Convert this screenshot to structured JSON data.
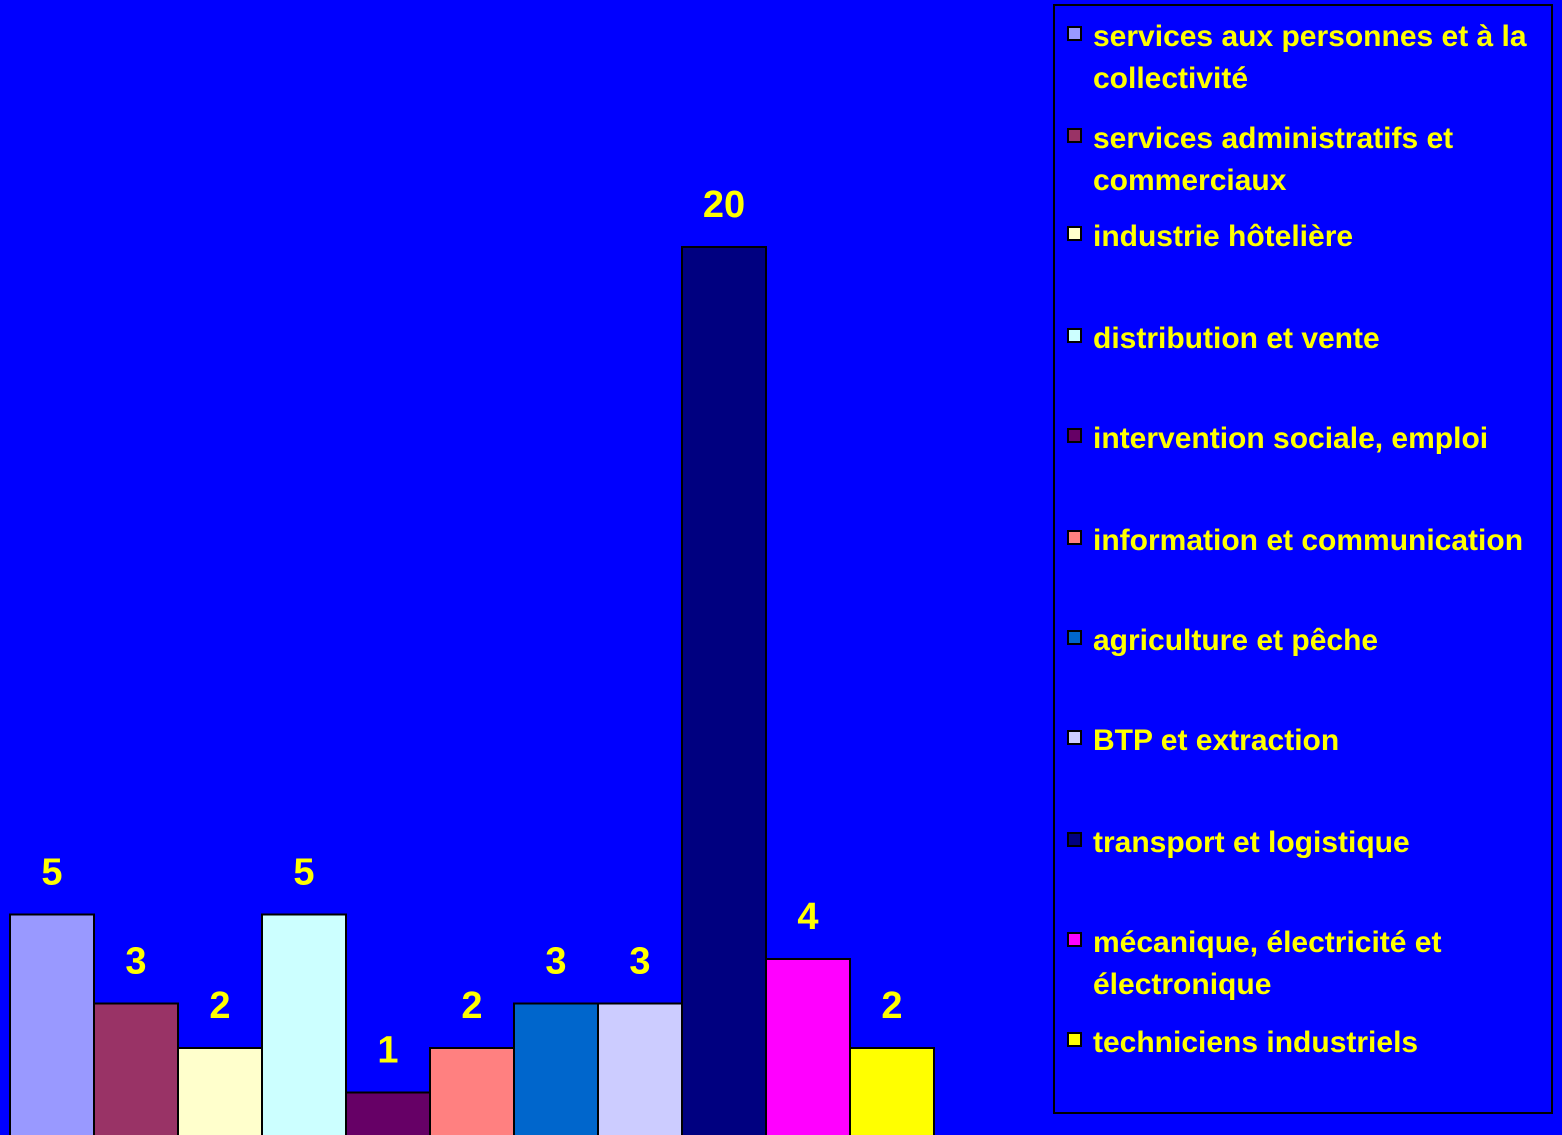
{
  "chart_data": {
    "type": "bar",
    "categories": [
      "services aux personnes et à la collectivité",
      "services administratifs et commerciaux",
      "industrie hôtelière",
      "distribution et vente",
      "intervention sociale, emploi",
      "information et communication",
      "agriculture et pêche",
      "BTP et extraction",
      "transport et logistique",
      "mécanique, électricité et électronique",
      "techniciens industriels"
    ],
    "values": [
      5,
      3,
      2,
      5,
      1,
      2,
      3,
      3,
      20,
      4,
      2
    ],
    "data_labels": [
      "5",
      "3",
      "2",
      "5",
      "1",
      "2",
      "3",
      "3",
      "20",
      "4",
      "2"
    ],
    "colors": [
      "#9999FF",
      "#993366",
      "#FFFFCC",
      "#CCFFFF",
      "#660066",
      "#FF8080",
      "#0066CC",
      "#CCCCFF",
      "#000080",
      "#FF00FF",
      "#FFFF00"
    ],
    "ylim": [
      0,
      25
    ],
    "grid": false,
    "legend_position": "right",
    "background_color": "#0000FF",
    "label_color": "#FFFF00"
  },
  "legend": {
    "items": [
      {
        "label": "services aux personnes et à la collectivité",
        "color": "#9999FF"
      },
      {
        "label": "services administratifs et commerciaux",
        "color": "#993366"
      },
      {
        "label": "industrie hôtelière",
        "color": "#FFFFCC"
      },
      {
        "label": "distribution et vente",
        "color": "#CCFFFF"
      },
      {
        "label": "intervention sociale, emploi",
        "color": "#660066"
      },
      {
        "label": "information et communication",
        "color": "#FF8080"
      },
      {
        "label": "agriculture et pêche",
        "color": "#0066CC"
      },
      {
        "label": "BTP et extraction",
        "color": "#CCCCFF"
      },
      {
        "label": "transport et logistique",
        "color": "#000080"
      },
      {
        "label": "mécanique, électricité et électronique",
        "color": "#FF00FF"
      },
      {
        "label": "techniciens industriels",
        "color": "#FFFF00"
      }
    ]
  }
}
